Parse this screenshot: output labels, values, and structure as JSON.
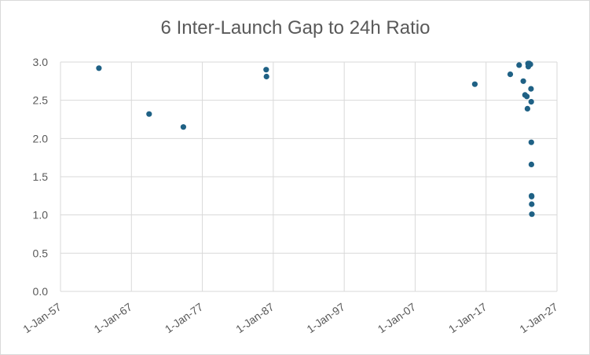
{
  "chart_data": {
    "type": "scatter",
    "title": "6 Inter-Launch Gap to 24h Ratio",
    "xlabel": "",
    "ylabel": "",
    "x_axis": {
      "type": "date",
      "min": "1957-01-01",
      "max": "2027-01-01",
      "ticks": [
        "1-Jan-57",
        "1-Jan-67",
        "1-Jan-77",
        "1-Jan-87",
        "1-Jan-97",
        "1-Jan-07",
        "1-Jan-17",
        "1-Jan-27"
      ]
    },
    "y_axis": {
      "min": 0,
      "max": 3,
      "ticks": [
        "0.0",
        "0.5",
        "1.0",
        "1.5",
        "2.0",
        "2.5",
        "3.0"
      ]
    },
    "grid": true,
    "legend": "none",
    "marker_color": "#1F6185",
    "points": [
      {
        "x": "1962-06-01",
        "y": 2.92
      },
      {
        "x": "1969-07-01",
        "y": 2.32
      },
      {
        "x": "1974-05-01",
        "y": 2.15
      },
      {
        "x": "1986-01-01",
        "y": 2.9
      },
      {
        "x": "1986-01-15",
        "y": 2.81
      },
      {
        "x": "2015-06-01",
        "y": 2.71
      },
      {
        "x": "2020-06-01",
        "y": 2.84
      },
      {
        "x": "2021-09-01",
        "y": 2.96
      },
      {
        "x": "2022-04-01",
        "y": 2.75
      },
      {
        "x": "2022-07-01",
        "y": 2.57
      },
      {
        "x": "2022-10-01",
        "y": 2.55
      },
      {
        "x": "2022-11-01",
        "y": 2.39
      },
      {
        "x": "2022-12-01",
        "y": 2.98
      },
      {
        "x": "2022-12-15",
        "y": 2.94
      },
      {
        "x": "2023-02-01",
        "y": 2.98
      },
      {
        "x": "2023-04-01",
        "y": 2.97
      },
      {
        "x": "2023-05-01",
        "y": 2.65
      },
      {
        "x": "2023-05-15",
        "y": 2.48
      },
      {
        "x": "2023-05-20",
        "y": 1.95
      },
      {
        "x": "2023-05-25",
        "y": 1.66
      },
      {
        "x": "2023-06-01",
        "y": 1.25
      },
      {
        "x": "2023-06-05",
        "y": 1.24
      },
      {
        "x": "2023-06-10",
        "y": 1.14
      },
      {
        "x": "2023-06-15",
        "y": 1.01
      }
    ]
  }
}
